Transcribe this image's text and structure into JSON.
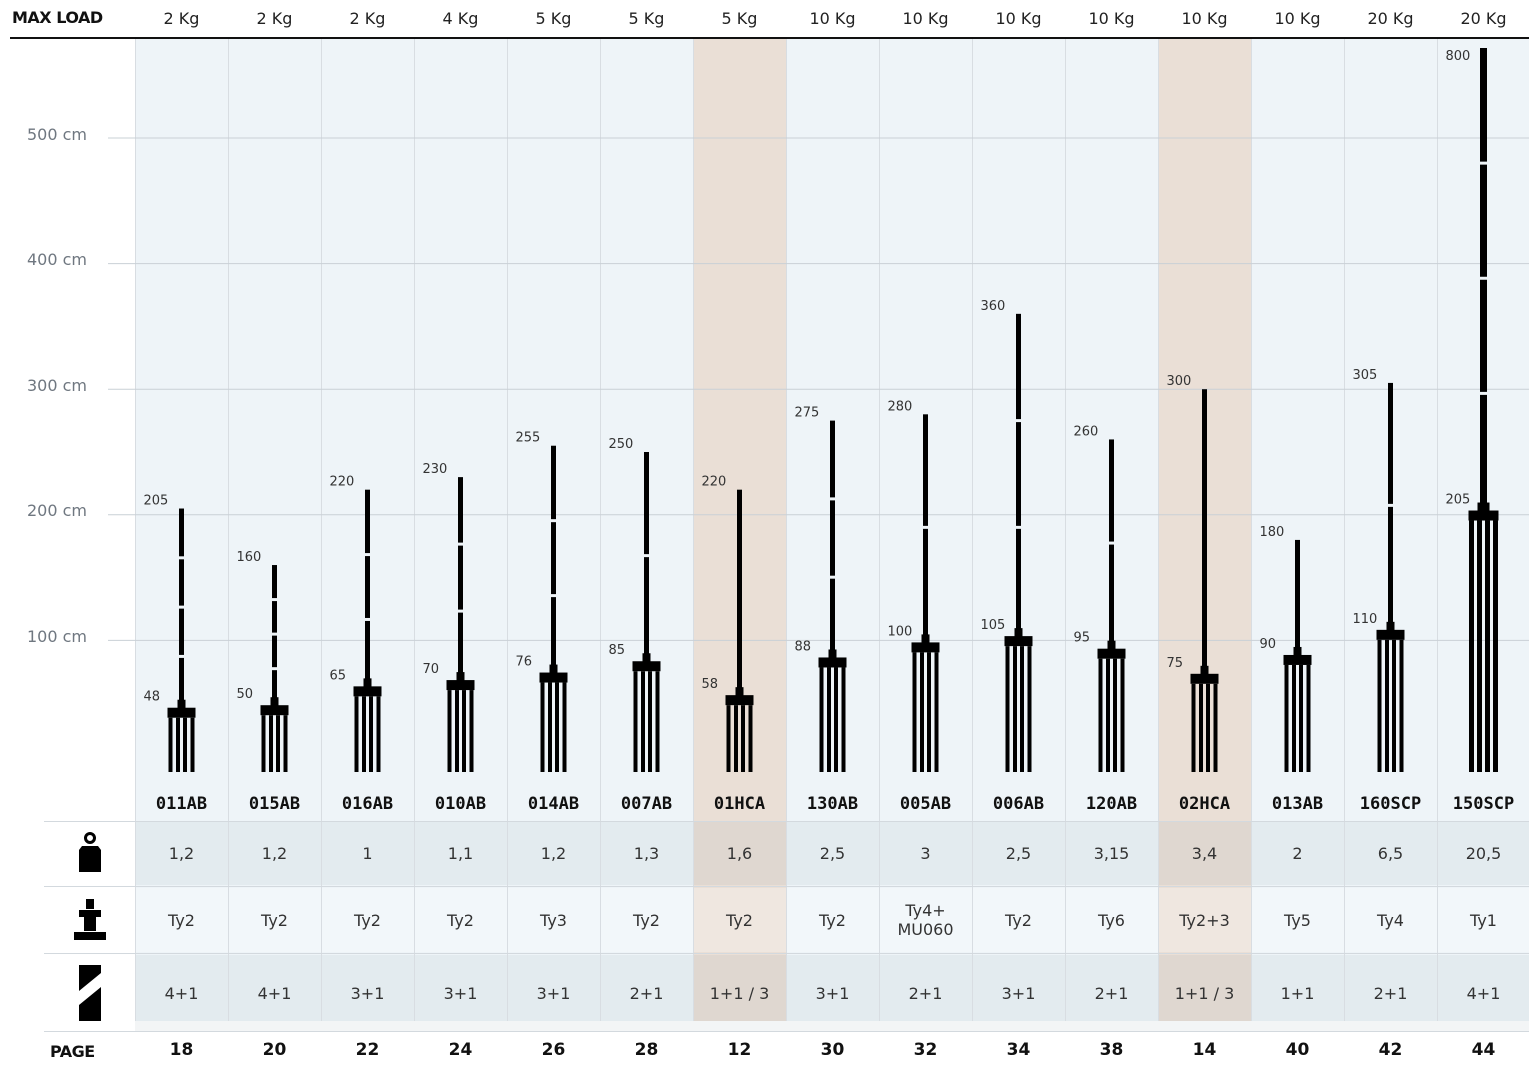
{
  "header": {
    "max_load_label": "MAX LOAD",
    "page_label": "PAGE"
  },
  "y_axis_labels": [
    "100 cm",
    "200 cm",
    "300 cm",
    "400 cm",
    "500 cm"
  ],
  "icons": {
    "weight_row": "weight-icon",
    "mount_row": "mount-icon",
    "sections_row": "sections-icon"
  },
  "colors": {
    "default_column": "#eef4f8",
    "highlight_column": "#eadfd6",
    "ink": "#000000"
  },
  "chart_data": {
    "type": "bar",
    "title": "",
    "xlabel": "",
    "ylabel": "",
    "ylim": [
      0,
      560
    ],
    "y_ticks": [
      100,
      200,
      300,
      400,
      500
    ],
    "grid": true,
    "categories": [
      "011AB",
      "015AB",
      "016AB",
      "010AB",
      "014AB",
      "007AB",
      "01HCA",
      "130AB",
      "005AB",
      "006AB",
      "120AB",
      "02HCA",
      "013AB",
      "160SCP",
      "150SCP"
    ],
    "max_load": [
      "2 Kg",
      "2 Kg",
      "2 Kg",
      "4 Kg",
      "5 Kg",
      "5 Kg",
      "5 Kg",
      "10 Kg",
      "10 Kg",
      "10 Kg",
      "10 Kg",
      "10 Kg",
      "10 Kg",
      "20 Kg",
      "20 Kg"
    ],
    "min_height": [
      48,
      50,
      65,
      70,
      76,
      85,
      58,
      88,
      100,
      105,
      95,
      75,
      90,
      110,
      205
    ],
    "max_height": [
      205,
      160,
      220,
      230,
      255,
      250,
      220,
      275,
      280,
      360,
      260,
      300,
      180,
      305,
      800
    ],
    "min_height_labels": [
      "48",
      "50",
      "65",
      "70",
      "76",
      "85",
      "58",
      "88",
      "100",
      "105",
      "95",
      "75",
      "90",
      "110",
      "205"
    ],
    "max_height_labels": [
      "205",
      "160",
      "220",
      "230",
      "255",
      "250",
      "220",
      "275",
      "280",
      "360",
      "260",
      "300",
      "180",
      "305",
      "800"
    ],
    "weight": [
      "1,2",
      "1,2",
      "1",
      "1,1",
      "1,2",
      "1,3",
      "1,6",
      "2,5",
      "3",
      "2,5",
      "3,15",
      "3,4",
      "2",
      "6,5",
      "20,5"
    ],
    "mount_type": [
      "Ty2",
      "Ty2",
      "Ty2",
      "Ty2",
      "Ty3",
      "Ty2",
      "Ty2",
      "Ty2",
      "Ty4+\nMU060",
      "Ty2",
      "Ty6",
      "Ty2+3",
      "Ty5",
      "Ty4",
      "Ty1"
    ],
    "sections": [
      "4+1",
      "4+1",
      "3+1",
      "3+1",
      "3+1",
      "2+1",
      "1+1 / 3",
      "3+1",
      "2+1",
      "3+1",
      "2+1",
      "1+1 / 3",
      "1+1",
      "2+1",
      "4+1"
    ],
    "page": [
      "18",
      "20",
      "22",
      "24",
      "26",
      "28",
      "12",
      "30",
      "32",
      "34",
      "38",
      "14",
      "40",
      "42",
      "44"
    ],
    "highlighted": [
      false,
      false,
      false,
      false,
      false,
      false,
      true,
      false,
      false,
      false,
      false,
      true,
      false,
      false,
      false
    ]
  }
}
